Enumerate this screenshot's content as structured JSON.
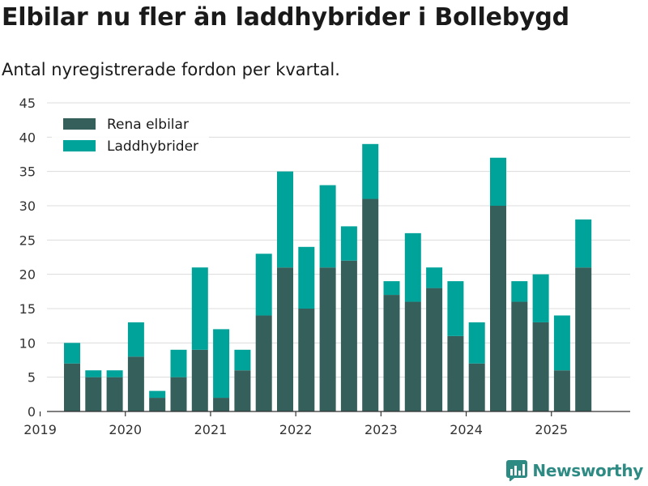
{
  "title": "Elbilar nu fler än laddhybrider i Bollebygd",
  "subtitle": "Antal nyregistrerade fordon per kvartal.",
  "brand": {
    "name": "Newsworthy",
    "icon": "newsworthy-logo-icon",
    "color": "#2e8b83"
  },
  "chart_data": {
    "type": "bar",
    "stacked": true,
    "categories": [
      "2019 Q2",
      "2019 Q3",
      "2019 Q4",
      "2020 Q1",
      "2020 Q2",
      "2020 Q3",
      "2020 Q4",
      "2021 Q1",
      "2021 Q2",
      "2021 Q3",
      "2021 Q4",
      "2022 Q1",
      "2022 Q2",
      "2022 Q3",
      "2022 Q4",
      "2023 Q1",
      "2023 Q2",
      "2023 Q3",
      "2023 Q4",
      "2024 Q1",
      "2024 Q2",
      "2024 Q3",
      "2024 Q4",
      "2025 Q1",
      "2025 Q2"
    ],
    "series": [
      {
        "name": "Rena elbilar",
        "color": "#355f5b",
        "values": [
          7,
          5,
          5,
          8,
          2,
          5,
          9,
          2,
          6,
          14,
          21,
          15,
          21,
          22,
          31,
          17,
          16,
          18,
          11,
          7,
          30,
          16,
          13,
          6,
          21
        ]
      },
      {
        "name": "Laddhybrider",
        "color": "#00a39a",
        "values": [
          3,
          1,
          1,
          5,
          1,
          4,
          12,
          10,
          3,
          9,
          14,
          9,
          12,
          5,
          8,
          2,
          10,
          3,
          8,
          6,
          7,
          3,
          7,
          8,
          7
        ]
      }
    ],
    "x_tick_labels": [
      "2019",
      "2020",
      "2021",
      "2022",
      "2023",
      "2024",
      "2025"
    ],
    "y_ticks": [
      0,
      5,
      10,
      15,
      20,
      25,
      30,
      35,
      40,
      45
    ],
    "ylim": [
      0,
      45
    ],
    "xlabel": "",
    "ylabel": "",
    "grid": true,
    "legend_position": "top-left"
  }
}
